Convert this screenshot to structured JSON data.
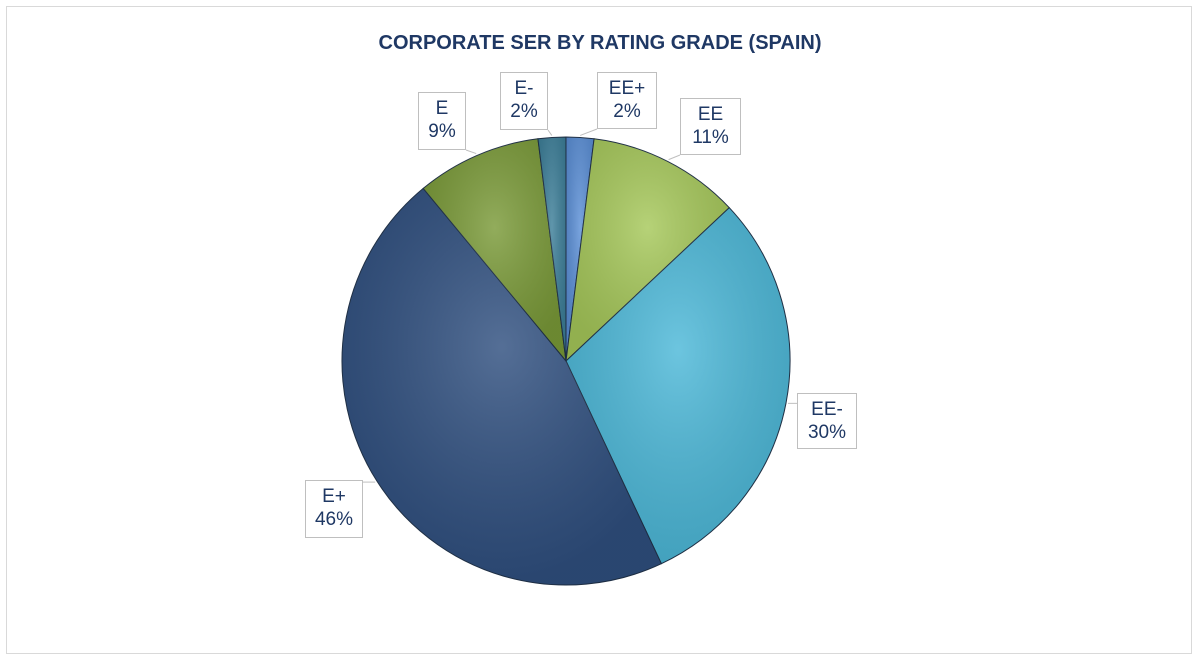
{
  "chart_data": {
    "type": "pie",
    "title": "CORPORATE SER BY RATING GRADE (SPAIN)",
    "start": "12 o'clock, clockwise",
    "slices": [
      {
        "label": "EE+",
        "value": 2,
        "display": "2%",
        "color": "#5b8fd6"
      },
      {
        "label": "EE",
        "value": 11,
        "display": "11%",
        "color": "#a6c85a"
      },
      {
        "label": "EE-",
        "value": 30,
        "display": "30%",
        "color": "#4cb8d8"
      },
      {
        "label": "E+",
        "value": 46,
        "display": "46%",
        "color": "#2f4f7f"
      },
      {
        "label": "E",
        "value": 9,
        "display": "9%",
        "color": "#7a9a38"
      },
      {
        "label": "E-",
        "value": 2,
        "display": "2%",
        "color": "#3d7f99"
      }
    ],
    "legend": "none (data labels)"
  }
}
